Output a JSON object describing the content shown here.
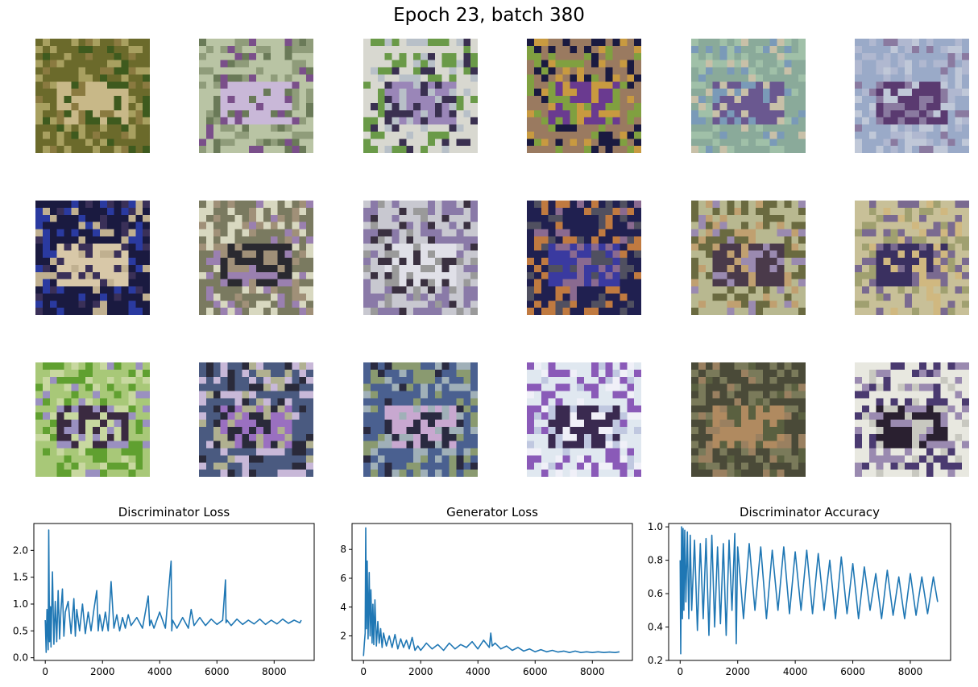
{
  "title": "Epoch 23, batch 380",
  "samples": [
    {
      "name": "sample-r1-c1",
      "colors": [
        "#6b6a2b",
        "#a8a060",
        "#c8b888",
        "#3e5a1e",
        "#8a7a40"
      ]
    },
    {
      "name": "sample-r1-c2",
      "colors": [
        "#b9c4a4",
        "#8f9c7a",
        "#c9b8d8",
        "#7a4f8a",
        "#6a7a58"
      ]
    },
    {
      "name": "sample-r1-c3",
      "colors": [
        "#d8d8d0",
        "#6a9a48",
        "#9a86b8",
        "#3a3050",
        "#b8c0c8"
      ]
    },
    {
      "name": "sample-r1-c4",
      "colors": [
        "#9a7a60",
        "#1a1a40",
        "#6a3a90",
        "#c89a40",
        "#80a040"
      ]
    },
    {
      "name": "sample-r1-c5",
      "colors": [
        "#8aaa9a",
        "#a0c0a8",
        "#6a5890",
        "#c8c0a8",
        "#7a9ab8"
      ]
    },
    {
      "name": "sample-r1-c6",
      "colors": [
        "#9aaac8",
        "#b0b8d0",
        "#5a3a70",
        "#8a7aa0",
        "#c0c8d8"
      ]
    },
    {
      "name": "sample-r2-c1",
      "colors": [
        "#1a1a40",
        "#2a3aa0",
        "#d8c8a8",
        "#3a3058",
        "#c0b090"
      ]
    },
    {
      "name": "sample-r2-c2",
      "colors": [
        "#7a7a60",
        "#d8d8c0",
        "#2a2a30",
        "#9a80b0",
        "#a09078"
      ]
    },
    {
      "name": "sample-r2-c3",
      "colors": [
        "#c8c8d0",
        "#8a7aa8",
        "#e0e0e8",
        "#3a3040",
        "#9a9a9a"
      ]
    },
    {
      "name": "sample-r2-c4",
      "colors": [
        "#202050",
        "#c07a40",
        "#3a3aa0",
        "#8a6a90",
        "#505060"
      ]
    },
    {
      "name": "sample-r2-c5",
      "colors": [
        "#b8b890",
        "#6a6a40",
        "#4a3a4a",
        "#9a8ab0",
        "#c0a070"
      ]
    },
    {
      "name": "sample-r2-c6",
      "colors": [
        "#c8c098",
        "#a0a070",
        "#3a3060",
        "#d0b880",
        "#7a6a90"
      ]
    },
    {
      "name": "sample-r3-c1",
      "colors": [
        "#a8c878",
        "#60a030",
        "#3a2a40",
        "#9a90c0",
        "#c8d8a0"
      ]
    },
    {
      "name": "sample-r3-c2",
      "colors": [
        "#4a5a80",
        "#c8b8d8",
        "#9a70c0",
        "#b0b090",
        "#2a2a3a"
      ]
    },
    {
      "name": "sample-r3-c3",
      "colors": [
        "#4a6090",
        "#8a9a70",
        "#c8a8d0",
        "#2a2a40",
        "#a0b0b8"
      ]
    },
    {
      "name": "sample-r3-c4",
      "colors": [
        "#e0e8f0",
        "#8a5ab8",
        "#3a2a50",
        "#c0c8e0",
        "#f0f0f8"
      ]
    },
    {
      "name": "sample-r3-c5",
      "colors": [
        "#4a4a38",
        "#7a7a5a",
        "#b08a60",
        "#5a6040",
        "#9a8060"
      ]
    },
    {
      "name": "sample-r3-c6",
      "colors": [
        "#e8e8e0",
        "#4a3a70",
        "#2a2030",
        "#c8c8c0",
        "#9a8ab0"
      ]
    }
  ],
  "line_color": "#1f77b4",
  "chart_data": [
    {
      "type": "line",
      "title": "Discriminator Loss",
      "xlabel": "",
      "ylabel": "",
      "xlim": [
        -400,
        9400
      ],
      "ylim": [
        -0.05,
        2.5
      ],
      "xticks": [
        0,
        2000,
        4000,
        6000,
        8000
      ],
      "xtick_labels": [
        "0",
        "2000",
        "4000",
        "6000",
        "8000"
      ],
      "yticks": [
        0.0,
        0.5,
        1.0,
        1.5,
        2.0
      ],
      "ytick_labels": [
        "0.0",
        "0.5",
        "1.0",
        "1.5",
        "2.0"
      ],
      "grid": false,
      "series": [
        {
          "name": "d_loss",
          "x": [
            0,
            30,
            60,
            100,
            120,
            150,
            180,
            200,
            250,
            300,
            350,
            400,
            450,
            500,
            550,
            600,
            650,
            700,
            800,
            900,
            1000,
            1050,
            1100,
            1200,
            1300,
            1400,
            1500,
            1600,
            1700,
            1800,
            1850,
            1900,
            2000,
            2100,
            2200,
            2300,
            2400,
            2500,
            2600,
            2700,
            2800,
            2900,
            3000,
            3200,
            3400,
            3600,
            3650,
            3700,
            3800,
            4000,
            4200,
            4400,
            4420,
            4450,
            4600,
            4800,
            5000,
            5100,
            5200,
            5400,
            5600,
            5800,
            6000,
            6200,
            6300,
            6320,
            6350,
            6500,
            6700,
            6900,
            7100,
            7300,
            7500,
            7700,
            7900,
            8100,
            8300,
            8500,
            8700,
            8900,
            8950
          ],
          "y": [
            0.7,
            0.1,
            0.9,
            0.15,
            2.38,
            0.3,
            0.95,
            0.2,
            1.6,
            0.25,
            1.05,
            0.3,
            1.25,
            0.35,
            0.9,
            1.28,
            0.4,
            0.85,
            1.05,
            0.45,
            1.1,
            0.4,
            0.9,
            0.5,
            1.0,
            0.45,
            0.85,
            0.5,
            0.9,
            1.25,
            0.5,
            0.8,
            0.5,
            0.85,
            0.5,
            1.42,
            0.55,
            0.8,
            0.5,
            0.75,
            0.55,
            0.8,
            0.6,
            0.75,
            0.55,
            1.15,
            0.6,
            0.7,
            0.55,
            0.85,
            0.55,
            1.8,
            0.5,
            0.7,
            0.55,
            0.75,
            0.55,
            0.9,
            0.6,
            0.75,
            0.6,
            0.72,
            0.62,
            0.7,
            1.45,
            0.65,
            0.7,
            0.6,
            0.72,
            0.62,
            0.7,
            0.63,
            0.72,
            0.62,
            0.7,
            0.63,
            0.72,
            0.64,
            0.7,
            0.65,
            0.7
          ]
        }
      ]
    },
    {
      "type": "line",
      "title": "Generator Loss",
      "xlabel": "",
      "ylabel": "",
      "xlim": [
        -400,
        9400
      ],
      "ylim": [
        0.3,
        9.8
      ],
      "xticks": [
        0,
        2000,
        4000,
        6000,
        8000
      ],
      "xtick_labels": [
        "0",
        "2000",
        "4000",
        "6000",
        "8000"
      ],
      "yticks": [
        2,
        4,
        6,
        8
      ],
      "ytick_labels": [
        "2",
        "4",
        "6",
        "8"
      ],
      "grid": false,
      "series": [
        {
          "name": "g_loss",
          "x": [
            0,
            30,
            60,
            80,
            100,
            130,
            160,
            200,
            230,
            260,
            300,
            330,
            360,
            400,
            450,
            500,
            550,
            600,
            650,
            700,
            800,
            900,
            1000,
            1100,
            1200,
            1300,
            1400,
            1500,
            1600,
            1700,
            1800,
            1900,
            2000,
            2200,
            2400,
            2600,
            2800,
            3000,
            3200,
            3400,
            3600,
            3800,
            4000,
            4200,
            4400,
            4450,
            4500,
            4600,
            4800,
            5000,
            5200,
            5400,
            5600,
            5800,
            6000,
            6200,
            6400,
            6600,
            6800,
            7000,
            7200,
            7400,
            7600,
            7800,
            8000,
            8200,
            8400,
            8600,
            8800,
            8950
          ],
          "y": [
            0.6,
            1.5,
            2.2,
            9.5,
            2.5,
            7.2,
            1.8,
            6.4,
            2.0,
            5.2,
            1.5,
            4.2,
            1.4,
            4.5,
            1.3,
            3.0,
            1.5,
            2.5,
            1.2,
            2.2,
            1.3,
            2.0,
            1.2,
            2.1,
            1.1,
            1.8,
            1.2,
            1.7,
            1.1,
            1.9,
            1.0,
            1.3,
            1.0,
            1.5,
            1.1,
            1.4,
            1.0,
            1.5,
            1.1,
            1.4,
            1.2,
            1.6,
            1.1,
            1.7,
            1.2,
            2.2,
            1.3,
            1.5,
            1.1,
            1.3,
            1.0,
            1.2,
            0.95,
            1.1,
            0.9,
            1.05,
            0.9,
            1.0,
            0.88,
            0.95,
            0.85,
            0.95,
            0.85,
            0.9,
            0.85,
            0.9,
            0.85,
            0.88,
            0.85,
            0.9
          ]
        }
      ]
    },
    {
      "type": "line",
      "title": "Discriminator Accuracy",
      "xlabel": "",
      "ylabel": "",
      "xlim": [
        -400,
        9400
      ],
      "ylim": [
        0.2,
        1.02
      ],
      "xticks": [
        0,
        2000,
        4000,
        6000,
        8000
      ],
      "xtick_labels": [
        "0",
        "2000",
        "4000",
        "6000",
        "8000"
      ],
      "yticks": [
        0.2,
        0.4,
        0.6,
        0.8,
        1.0
      ],
      "ytick_labels": [
        "0.2",
        "0.4",
        "0.6",
        "0.8",
        "1.0"
      ],
      "grid": false,
      "series": [
        {
          "name": "d_acc",
          "x": [
            0,
            20,
            50,
            80,
            100,
            130,
            160,
            200,
            250,
            300,
            350,
            400,
            500,
            600,
            700,
            800,
            900,
            1000,
            1100,
            1200,
            1300,
            1400,
            1500,
            1600,
            1700,
            1800,
            1900,
            1950,
            2000,
            2200,
            2400,
            2600,
            2800,
            3000,
            3200,
            3400,
            3600,
            3800,
            4000,
            4200,
            4400,
            4600,
            4800,
            5000,
            5200,
            5400,
            5600,
            5800,
            6000,
            6200,
            6400,
            6600,
            6800,
            7000,
            7200,
            7400,
            7600,
            7800,
            8000,
            8200,
            8400,
            8600,
            8800,
            8950
          ],
          "y": [
            0.8,
            0.24,
            1.0,
            0.45,
            0.99,
            0.5,
            0.98,
            0.55,
            0.97,
            0.45,
            0.95,
            0.5,
            0.92,
            0.38,
            0.9,
            0.45,
            0.93,
            0.35,
            0.95,
            0.4,
            0.88,
            0.42,
            0.9,
            0.35,
            0.92,
            0.5,
            0.96,
            0.3,
            0.88,
            0.45,
            0.9,
            0.5,
            0.88,
            0.45,
            0.86,
            0.5,
            0.88,
            0.48,
            0.85,
            0.5,
            0.86,
            0.48,
            0.84,
            0.5,
            0.8,
            0.45,
            0.82,
            0.48,
            0.78,
            0.45,
            0.76,
            0.5,
            0.72,
            0.45,
            0.74,
            0.47,
            0.7,
            0.45,
            0.72,
            0.47,
            0.7,
            0.48,
            0.7,
            0.55
          ]
        }
      ]
    }
  ]
}
